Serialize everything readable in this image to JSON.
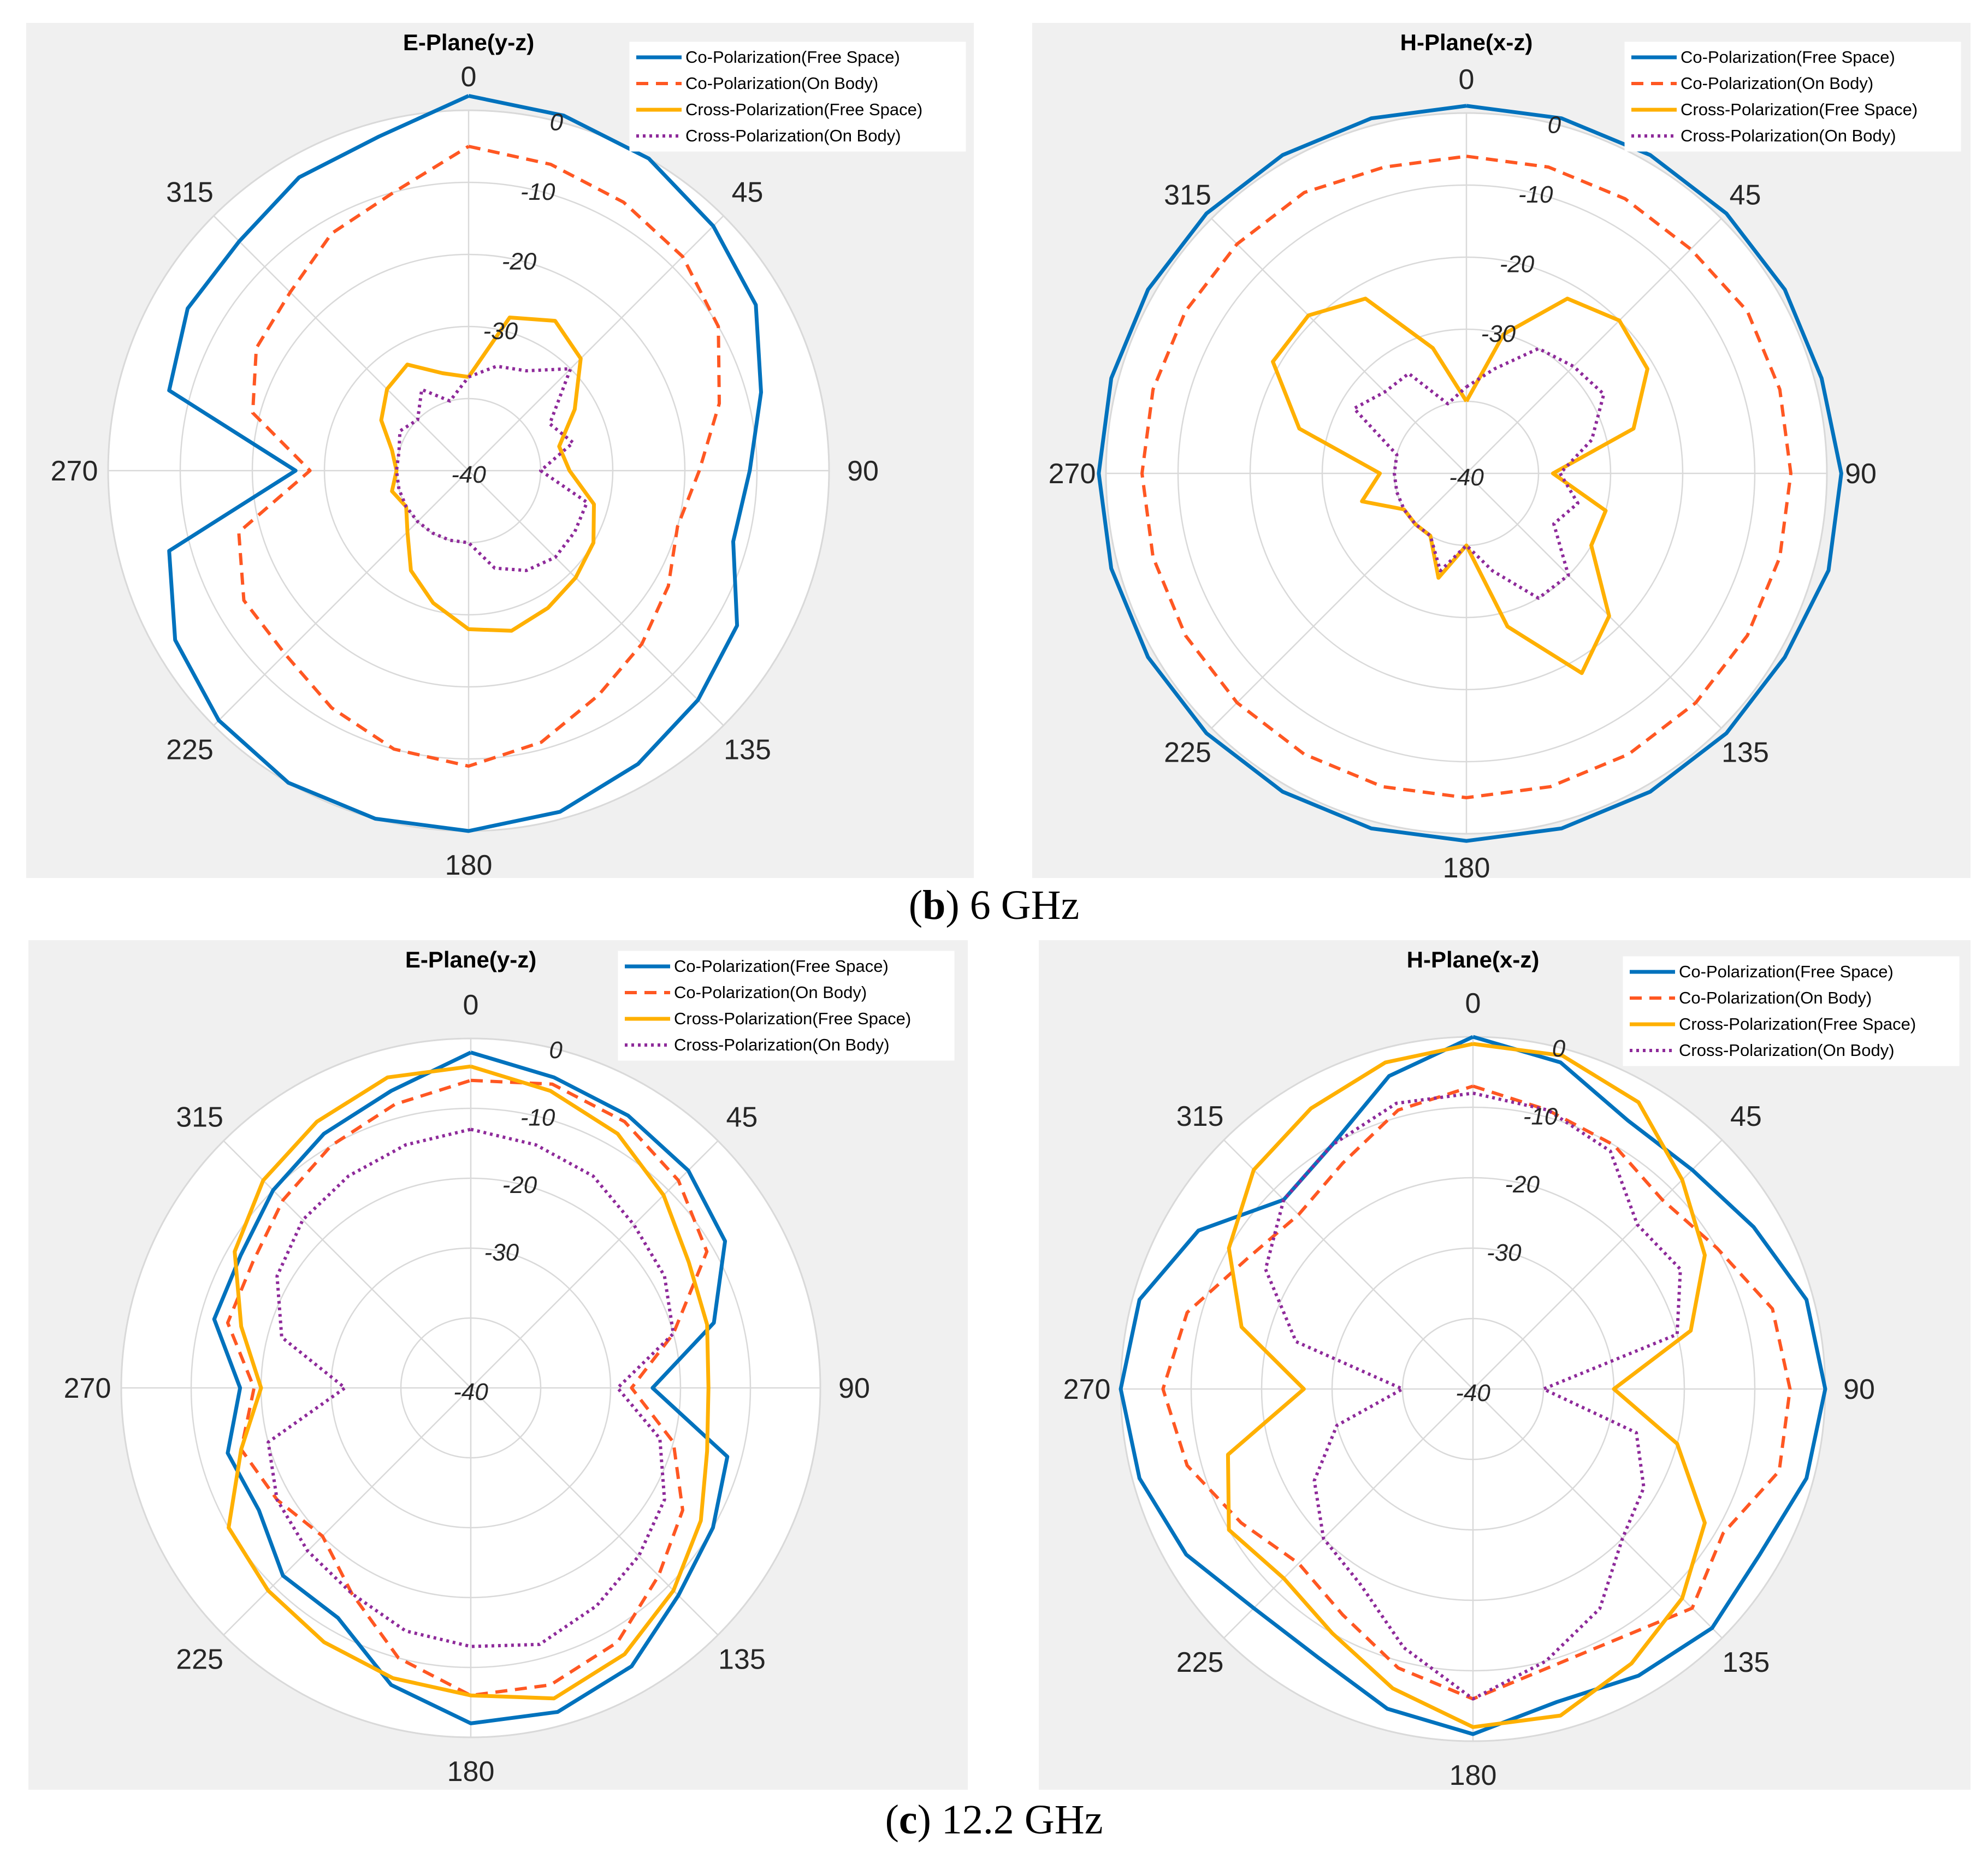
{
  "colors": {
    "co_free": "#0072bd",
    "co_body": "#ff5722",
    "cross_free": "#ffb000",
    "cross_body": "#8e2a9a",
    "grid": "#d9d9d9",
    "panel_bg": "#f0f0f0"
  },
  "captions": {
    "b_letter": "b",
    "b_text": "6 GHz",
    "c_letter": "c",
    "c_text": "12.2 GHz"
  },
  "chart_data": [
    {
      "type": "polar-line",
      "title": "E-Plane(y-z)",
      "theta_labels": [
        "0",
        "45",
        "90",
        "135",
        "180",
        "225",
        "270",
        "315"
      ],
      "r_labels": [
        "0",
        "-10",
        "-20",
        "-30",
        "-40"
      ],
      "rlim": [
        -40,
        0
      ],
      "theta_step_deg": 15,
      "legend": [
        "Co-Polarization(Free Space)",
        "Co-Polarization(On Body)",
        "Cross-Polarization(Free Space)",
        "Cross-Polarization(On Body)"
      ],
      "series": [
        {
          "name": "Co-Polarization(Free Space)",
          "r": [
            2,
            1,
            0,
            -2,
            -4,
            -8,
            -11,
            -12,
            -7,
            -5,
            -3,
            -1,
            0,
            0,
            0,
            -1,
            -3,
            -7,
            -26,
            -7,
            -5,
            -5,
            -3,
            -2
          ]
        },
        {
          "name": "Co-Polarization(On Body)",
          "r": [
            -5,
            -6,
            -7,
            -8,
            -10,
            -14,
            -18,
            -20,
            -18,
            -16,
            -14,
            -11,
            -9,
            -10,
            -12,
            -14,
            -14,
            -17,
            -28,
            -19,
            -16,
            -15,
            -12,
            -10
          ]
        },
        {
          "name": "Cross-Polarization(Free Space)",
          "r": [
            -37,
            -28,
            -26,
            -28,
            -33,
            -37,
            -36,
            -32,
            -30,
            -29,
            -28,
            -27,
            -28,
            -31,
            -34,
            -38,
            -40,
            -39,
            -40,
            -39,
            -36,
            -34,
            -33,
            -36
          ]
        },
        {
          "name": "Cross-Polarization(On Body)",
          "r": [
            -37,
            -35,
            -34,
            -30,
            -37,
            -35,
            -40,
            -33,
            -33,
            -33,
            -34,
            -36,
            -40,
            -40,
            -40,
            -40,
            -40,
            -40,
            -40,
            -40,
            -39,
            -40,
            -37,
            -40
          ]
        }
      ]
    },
    {
      "type": "polar-line",
      "title": "H-Plane(x-z)",
      "theta_labels": [
        "0",
        "45",
        "90",
        "135",
        "180",
        "225",
        "270",
        "315"
      ],
      "r_labels": [
        "0",
        "-10",
        "-20",
        "-30",
        "-40"
      ],
      "rlim": [
        -40,
        0
      ],
      "theta_step_deg": 15,
      "legend": [
        "Co-Polarization(Free Space)",
        "Co-Polarization(On Body)",
        "Cross-Polarization(Free Space)",
        "Cross-Polarization(On Body)"
      ],
      "series": [
        {
          "name": "Co-Polarization(Free Space)",
          "r": [
            1,
            1,
            1,
            1,
            1,
            1,
            2,
            2,
            1,
            1,
            1,
            1,
            1,
            1,
            1,
            1,
            1,
            1,
            1,
            1,
            1,
            1,
            1,
            1
          ]
        },
        {
          "name": "Co-Polarization(On Body)",
          "r": [
            -6,
            -6,
            -6,
            -6,
            -5,
            -5,
            -5,
            -5,
            -5,
            -5,
            -5,
            -5,
            -5,
            -5,
            -5,
            -5,
            -5,
            -5,
            -5,
            -5,
            -5,
            -5,
            -5,
            -6
          ]
        },
        {
          "name": "Cross-Polarization(Free Space)",
          "r": [
            -40,
            -30,
            -22,
            -20,
            -21,
            -26,
            -38,
            -30,
            -30,
            -22,
            -18,
            -28,
            -40,
            -35,
            -40,
            -40,
            -40,
            -35,
            -38,
            -26,
            -19,
            -19,
            -22,
            -32
          ]
        },
        {
          "name": "Cross-Polarization(On Body)",
          "r": [
            -38,
            -35,
            -30,
            -29,
            -28,
            -32,
            -37,
            -34,
            -36,
            -30,
            -30,
            -36,
            -40,
            -36,
            -40,
            -40,
            -40,
            -40,
            -40,
            -40,
            -32,
            -34,
            -34,
            -40
          ]
        }
      ]
    },
    {
      "type": "polar-line",
      "title": "E-Plane(y-z)",
      "theta_labels": [
        "0",
        "45",
        "90",
        "135",
        "180",
        "225",
        "270",
        "315"
      ],
      "r_labels": [
        "0",
        "-10",
        "-20",
        "-30",
        "-40"
      ],
      "rlim": [
        -40,
        0
      ],
      "theta_step_deg": 15,
      "legend": [
        "Co-Polarization(Free Space)",
        "Co-Polarization(On Body)",
        "Cross-Polarization(Free Space)",
        "Cross-Polarization(On Body)"
      ],
      "series": [
        {
          "name": "Co-Polarization(Free Space)",
          "r": [
            -2,
            -4,
            -5,
            -6,
            -8,
            -14,
            -24,
            -12,
            -10,
            -8,
            -4,
            -2,
            -2,
            -6,
            -12,
            -12,
            -15,
            -14,
            -17,
            -12,
            -12,
            -10,
            -8,
            -6
          ]
        },
        {
          "name": "Co-Polarization(On Body)",
          "r": [
            -6,
            -5,
            -6,
            -8,
            -11,
            -20,
            -27,
            -20,
            -15,
            -12,
            -8,
            -6,
            -6,
            -10,
            -16,
            -20,
            -18,
            -16,
            -19,
            -14,
            -14,
            -12,
            -10,
            -8
          ]
        },
        {
          "name": "Cross-Polarization(Free Space)",
          "r": [
            -4,
            -6,
            -8,
            -11,
            -14,
            -15,
            -16,
            -15,
            -12,
            -9,
            -6,
            -4,
            -6,
            -7,
            -8,
            -9,
            -10,
            -16,
            -20,
            -16,
            -11,
            -8,
            -6,
            -4
          ]
        },
        {
          "name": "Cross-Polarization(On Body)",
          "r": [
            -13,
            -14,
            -15,
            -17,
            -18,
            -20,
            -29,
            -22,
            -18,
            -16,
            -14,
            -12,
            -13,
            -14,
            -16,
            -17,
            -18,
            -20,
            -32,
            -22,
            -18,
            -16,
            -15,
            -14
          ]
        }
      ]
    },
    {
      "type": "polar-line",
      "title": "H-Plane(x-z)",
      "theta_labels": [
        "0",
        "45",
        "90",
        "135",
        "180",
        "225",
        "270",
        "315"
      ],
      "r_labels": [
        "0",
        "-10",
        "-20",
        "-30",
        "-40"
      ],
      "rlim": [
        -40,
        0
      ],
      "theta_step_deg": 15,
      "legend": [
        "Co-Polarization(Free Space)",
        "Co-Polarization(On Body)",
        "Cross-Polarization(Free Space)",
        "Cross-Polarization(On Body)"
      ],
      "series": [
        {
          "name": "Co-Polarization(Free Space)",
          "r": [
            0,
            -2,
            -6,
            -6,
            -4,
            -1,
            0,
            -1,
            -3,
            -2,
            -3,
            -4,
            -1,
            -3,
            -6,
            -6,
            -3,
            -1,
            0,
            -1,
            -5,
            -12,
            -10,
            -4
          ]
        },
        {
          "name": "Co-Polarization(On Body)",
          "r": [
            -7,
            -9,
            -10,
            -12,
            -10,
            -6,
            -5,
            -5,
            -9,
            -6,
            -9,
            -9,
            -6,
            -9,
            -13,
            -15,
            -12,
            -8,
            -6,
            -8,
            -13,
            -15,
            -13,
            -9
          ]
        },
        {
          "name": "Cross-Polarization(Free Space)",
          "r": [
            -1,
            -1,
            -3,
            -8,
            -12,
            -18,
            -30,
            -20,
            -12,
            -8,
            -5,
            -2,
            -2,
            -6,
            -10,
            -12,
            -10,
            -14,
            -26,
            -16,
            -10,
            -6,
            -4,
            -2
          ]
        },
        {
          "name": "Cross-Polarization(On Body)",
          "r": [
            -8,
            -9,
            -11,
            -17,
            -16,
            -20,
            -40,
            -26,
            -22,
            -20,
            -14,
            -10,
            -6,
            -12,
            -18,
            -20,
            -24,
            -30,
            -40,
            -24,
            -16,
            -12,
            -10,
            -8
          ]
        }
      ]
    }
  ]
}
